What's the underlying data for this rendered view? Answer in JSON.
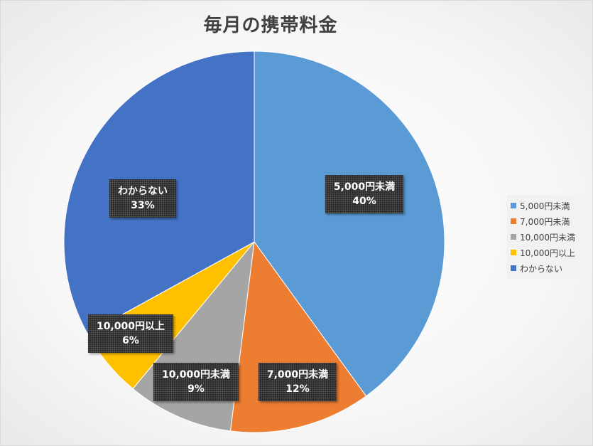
{
  "chart_data": {
    "type": "pie",
    "title": "毎月の携帯料金",
    "categories": [
      "5,000円未満",
      "7,000円未満",
      "10,000円未満",
      "10,000円以上",
      "わからない"
    ],
    "values": [
      40,
      12,
      9,
      6,
      33
    ],
    "percent_labels": [
      "40%",
      "12%",
      "9%",
      "6%",
      "33%"
    ],
    "colors": [
      "#5b9bd5",
      "#ed7d31",
      "#a5a5a5",
      "#ffc000",
      "#4472c4"
    ],
    "legend_position": "right",
    "start_angle": "12 o'clock, clockwise"
  }
}
